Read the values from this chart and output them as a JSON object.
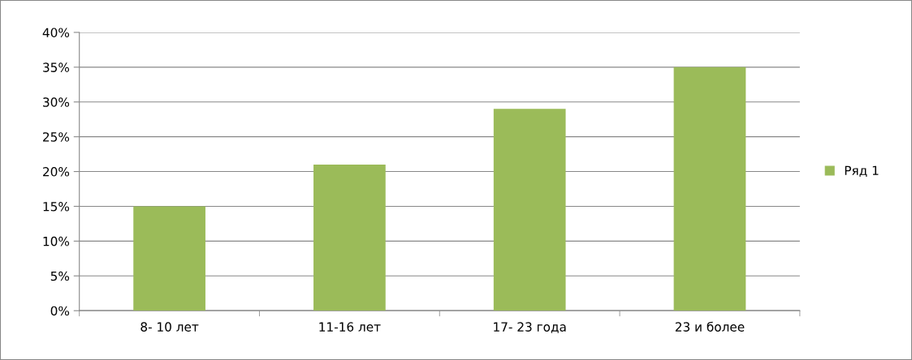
{
  "chart_data": {
    "type": "bar",
    "categories": [
      "8- 10 лет",
      "11-16 лет",
      "17- 23 года",
      "23 и более"
    ],
    "series": [
      {
        "name": "Ряд 1",
        "color": "#9bbb59",
        "values": [
          15,
          21,
          29,
          35
        ]
      }
    ],
    "ylim": [
      0,
      40
    ],
    "yticks": [
      {
        "value": 0,
        "label": "0%"
      },
      {
        "value": 5,
        "label": "5%"
      },
      {
        "value": 10,
        "label": "10%"
      },
      {
        "value": 15,
        "label": "15%"
      },
      {
        "value": 20,
        "label": "20%"
      },
      {
        "value": 25,
        "label": "25%"
      },
      {
        "value": 30,
        "label": "30%"
      },
      {
        "value": 35,
        "label": "35%"
      },
      {
        "value": 40,
        "label": "40%"
      }
    ],
    "grid": "y",
    "legend": "right"
  }
}
